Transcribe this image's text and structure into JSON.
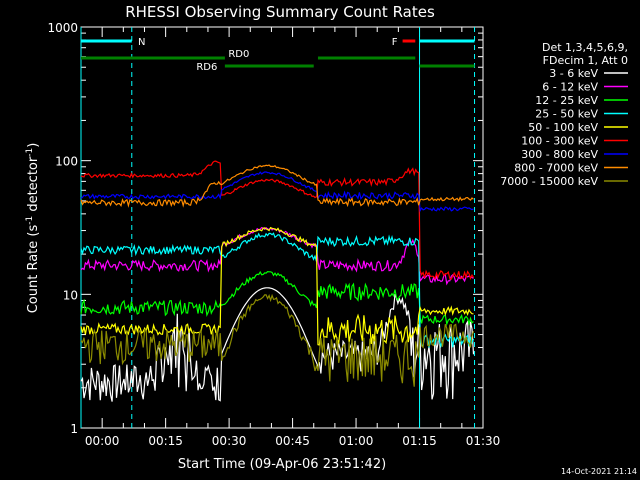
{
  "chart_data": {
    "type": "line",
    "title": "RHESSI Observing Summary Count Rates",
    "xlabel": "Start Time (09-Apr-06 23:51:42)",
    "ylabel_main": "Count Rate (s",
    "ylabel_sup1": "-1",
    "ylabel_mid": " detector",
    "ylabel_sup2": "-1",
    "ylabel_end": ")",
    "y_scale": "log",
    "ylim": [
      1,
      1000
    ],
    "y_ticks": [
      "1",
      "10",
      "100",
      "1000"
    ],
    "xlim_minutes": [
      -5,
      90
    ],
    "x_ticks": [
      {
        "m": 0,
        "label": "00:00"
      },
      {
        "m": 15,
        "label": "00:15"
      },
      {
        "m": 30,
        "label": "00:30"
      },
      {
        "m": 45,
        "label": "00:45"
      },
      {
        "m": 60,
        "label": "01:00"
      },
      {
        "m": 75,
        "label": "01:15"
      },
      {
        "m": 90,
        "label": "01:30"
      }
    ],
    "legend_header": [
      "Det 1,3,4,5,6,9,",
      "FDecim 1, Att 0"
    ],
    "legend_position": "right",
    "series": [
      {
        "name": "3 - 6 keV",
        "color": "#ffffff"
      },
      {
        "name": "6 - 12 keV",
        "color": "#ff00ff"
      },
      {
        "name": "12 - 25 keV",
        "color": "#00ff00"
      },
      {
        "name": "25 - 50 keV",
        "color": "#00ffff"
      },
      {
        "name": "50 - 100 keV",
        "color": "#ffff00"
      },
      {
        "name": "100 - 300 keV",
        "color": "#ff0000"
      },
      {
        "name": "300 - 800 keV",
        "color": "#0000ff"
      },
      {
        "name": "800 - 7000 keV",
        "color": "#ff8c00"
      },
      {
        "name": "7000 - 15000 keV",
        "color": "#8b8b00"
      }
    ],
    "flags": [
      {
        "label": "N",
        "color": "#00ffff",
        "start": -5,
        "end": 7,
        "level": "top"
      },
      {
        "label": "F",
        "color": "#ff0000",
        "start": 71,
        "end": 74,
        "level": "top"
      },
      {
        "label": "",
        "color": "#00ffff",
        "start": 75,
        "end": 88,
        "level": "top"
      },
      {
        "label": "RD0",
        "color": "#008000",
        "start": -5,
        "end": 29,
        "level": "mid"
      },
      {
        "label": "RD6",
        "color": "#008000",
        "start": 29,
        "end": 50,
        "level": "low"
      },
      {
        "label": "",
        "color": "#008000",
        "start": 51,
        "end": 74,
        "level": "mid"
      },
      {
        "label": "",
        "color": "#008000",
        "start": 75,
        "end": 88,
        "level": "low"
      }
    ],
    "night_lines": [
      {
        "m": -5,
        "style": "solid"
      },
      {
        "m": 7,
        "style": "dashed"
      },
      {
        "m": 75,
        "style": "solid"
      },
      {
        "m": 88,
        "style": "dashed"
      }
    ]
  },
  "timestamp": "14-Oct-2021 21:14"
}
